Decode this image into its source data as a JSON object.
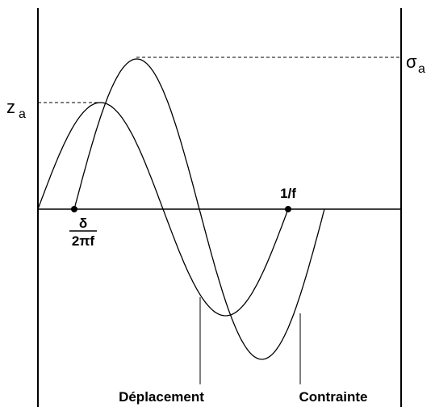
{
  "labels": {
    "displacement_amplitude": {
      "symbol": "z",
      "subscript": "a"
    },
    "stress_amplitude": {
      "symbol": "σ",
      "subscript": "a"
    },
    "phase_shift": {
      "numerator": "δ",
      "denominator": "2πf"
    },
    "period": "1/f",
    "displacement": "Déplacement",
    "stress": "Contrainte"
  }
}
